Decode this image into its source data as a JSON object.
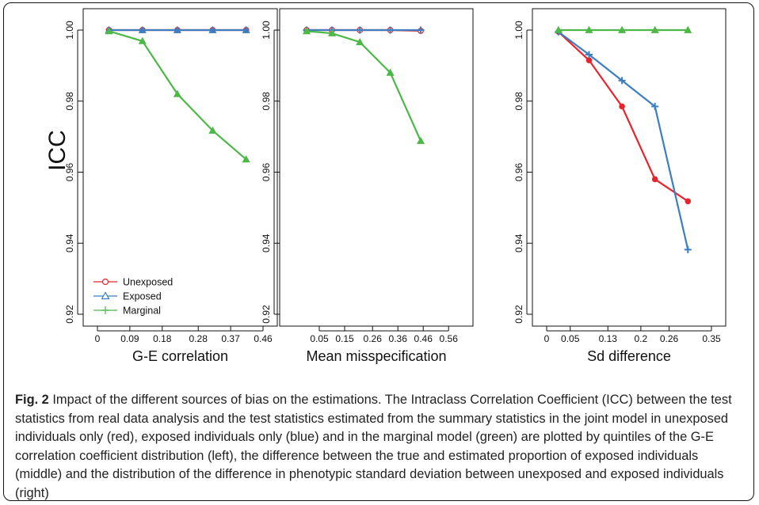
{
  "figure": {
    "ylabel": "ICC",
    "legend": {
      "entries": [
        {
          "label": "Unexposed",
          "color": "#e8242c",
          "marker": "circle-open"
        },
        {
          "label": "Exposed",
          "color": "#3d7ec0",
          "marker": "triangle-open"
        },
        {
          "label": "Marginal",
          "color": "#4cb848",
          "marker": "plus"
        }
      ]
    }
  },
  "caption": {
    "label": "Fig. 2",
    "text": " Impact of the different sources of bias on the estimations. The Intraclass Correlation Coefficient (ICC) between the test statistics from real data analysis and the test statistics estimated from the summary statistics in the joint model in unexposed individuals only (red), exposed individuals only (blue) and in the marginal model (green) are plotted by quintiles of the G-E correlation coefficient distribution (left), the difference between the true and estimated proportion of exposed individuals (middle) and the distribution of the difference in phenotypic standard deviation between unexposed and exposed individuals (right)"
  },
  "chart_data": [
    {
      "type": "line",
      "xlabel": "G-E correlation",
      "ylabel": "ICC",
      "xticks": [
        "0",
        "0.09",
        "0.18",
        "0.28",
        "0.37",
        "0.46"
      ],
      "xlim": [
        0,
        0.46
      ],
      "ylim": [
        0.92,
        1.0
      ],
      "yticks": [
        "0.92",
        "0.94",
        "0.96",
        "0.98",
        "1.00"
      ],
      "x": [
        0.032,
        0.125,
        0.222,
        0.32,
        0.413
      ],
      "legend": "bottom-left",
      "series": [
        {
          "name": "Unexposed",
          "color": "#e8242c",
          "marker": "circle",
          "values": [
            1.0,
            1.0,
            1.0,
            1.0,
            1.0
          ]
        },
        {
          "name": "Exposed",
          "color": "#3d7ec0",
          "marker": "triangle",
          "values": [
            1.0,
            1.0,
            1.0,
            1.0,
            1.0
          ]
        },
        {
          "name": "Marginal",
          "color": "#4cb848",
          "marker": "triangle",
          "values": [
            0.9997,
            0.9969,
            0.982,
            0.9717,
            0.9636
          ]
        }
      ]
    },
    {
      "type": "line",
      "xlabel": "Mean misspecification",
      "ylabel": "",
      "xticks": [
        "0.05",
        "0.15",
        "0.26",
        "0.36",
        "0.46",
        "0.56"
      ],
      "xlim": [
        -0.05,
        0.6
      ],
      "ylim": [
        0.92,
        1.0
      ],
      "yticks": [
        "0.92",
        "0.94",
        "0.96",
        "0.98",
        "1.00"
      ],
      "x": [
        0.0,
        0.1,
        0.21,
        0.33,
        0.45
      ],
      "series": [
        {
          "name": "Unexposed",
          "color": "#e8242c",
          "marker": "circle",
          "values": [
            1.0,
            1.0,
            1.0,
            1.0,
            0.9998
          ]
        },
        {
          "name": "Exposed",
          "color": "#3d7ec0",
          "marker": "plus",
          "values": [
            1.0,
            1.0,
            1.0,
            1.0,
            1.0
          ]
        },
        {
          "name": "Marginal",
          "color": "#4cb848",
          "marker": "triangle",
          "values": [
            0.9997,
            0.9991,
            0.9966,
            0.988,
            0.9688
          ]
        }
      ]
    },
    {
      "type": "line",
      "xlabel": "Sd difference",
      "ylabel": "",
      "xticks": [
        "0",
        "0.05",
        "0.13",
        "0.2",
        "0.26",
        "0.35"
      ],
      "xlim": [
        0,
        0.35
      ],
      "ylim": [
        0.92,
        1.0
      ],
      "yticks": [
        "0.92",
        "0.94",
        "0.96",
        "0.98",
        "1.00"
      ],
      "x": [
        0.025,
        0.09,
        0.16,
        0.23,
        0.3
      ],
      "series": [
        {
          "name": "Unexposed",
          "color": "#e8242c",
          "marker": "dot",
          "values": [
            0.9995,
            0.9915,
            0.9785,
            0.958,
            0.9518
          ]
        },
        {
          "name": "Exposed",
          "color": "#3d7ec0",
          "marker": "plus",
          "values": [
            0.9995,
            0.9931,
            0.9858,
            0.9785,
            0.9382
          ]
        },
        {
          "name": "Marginal",
          "color": "#4cb848",
          "marker": "triangle",
          "values": [
            1.0,
            1.0,
            1.0,
            1.0,
            1.0
          ]
        }
      ]
    }
  ]
}
